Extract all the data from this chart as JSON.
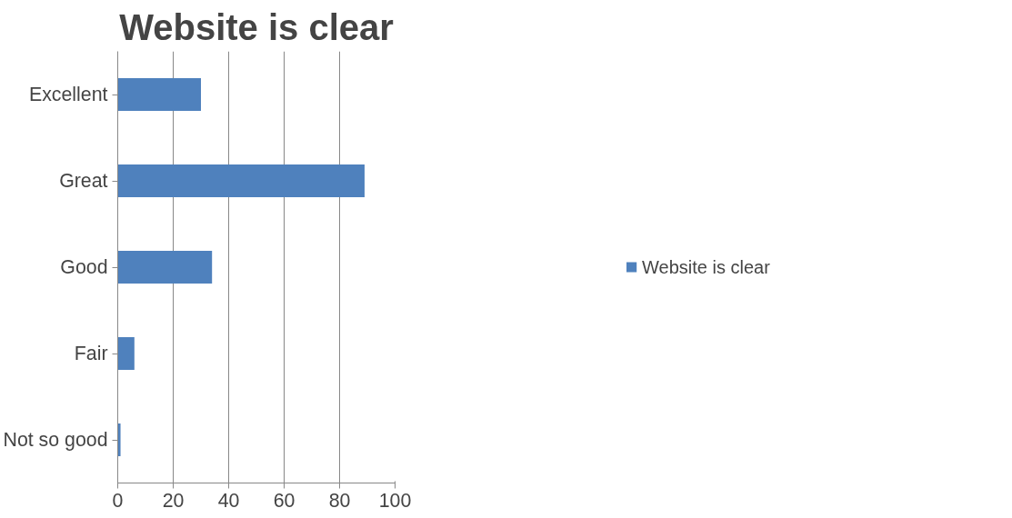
{
  "chart_data": {
    "type": "bar",
    "orientation": "horizontal",
    "title": "Website is clear",
    "categories": [
      "Excellent",
      "Great",
      "Good",
      "Fair",
      "Not so good"
    ],
    "series": [
      {
        "name": "Website is clear",
        "color": "#4f81bd",
        "values": [
          30,
          89,
          34,
          6,
          1
        ]
      }
    ],
    "xlim": [
      0,
      100
    ],
    "xticks": [
      0,
      20,
      40,
      60,
      80,
      100
    ],
    "grid": "x",
    "legend": "right"
  }
}
